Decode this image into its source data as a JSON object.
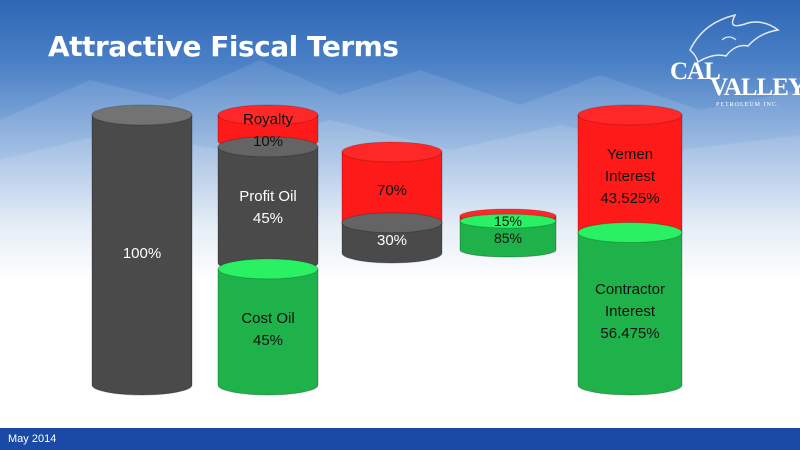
{
  "slide": {
    "title": "Attractive Fiscal Terms",
    "footer_date": "May 2014"
  },
  "logo": {
    "name_part1": "CAL",
    "name_part2": "VALLEY",
    "tagline": "PETROLEUM INC."
  },
  "colors": {
    "gray": "#4a4a4a",
    "red": "#ff1a1a",
    "green": "#1fb24a",
    "footer_blue": "#1b4aa6"
  },
  "stacks": [
    {
      "id": "total",
      "segments": [
        {
          "label": "100%",
          "value": 100,
          "color": "gray"
        }
      ]
    },
    {
      "id": "split",
      "segments": [
        {
          "label": "Royalty\n10%",
          "value": 10,
          "color": "red"
        },
        {
          "label": "Profit Oil\n45%",
          "value": 45,
          "color": "gray"
        },
        {
          "label": "Cost Oil\n45%",
          "value": 45,
          "color": "green"
        }
      ]
    },
    {
      "id": "profit-oil-split",
      "segments": [
        {
          "label": "70%",
          "value": 70,
          "color": "red"
        },
        {
          "label": "30%",
          "value": 30,
          "color": "gray"
        }
      ]
    },
    {
      "id": "contractor-split",
      "segments": [
        {
          "label": "15%",
          "value": 15,
          "color": "red"
        },
        {
          "label": "85%",
          "value": 85,
          "color": "green"
        }
      ]
    },
    {
      "id": "final",
      "segments": [
        {
          "label": "Yemen\nInterest\n43.525%",
          "value": 43.525,
          "color": "red"
        },
        {
          "label": "Contractor\nInterest\n56.475%",
          "value": 56.475,
          "color": "green"
        }
      ]
    }
  ]
}
